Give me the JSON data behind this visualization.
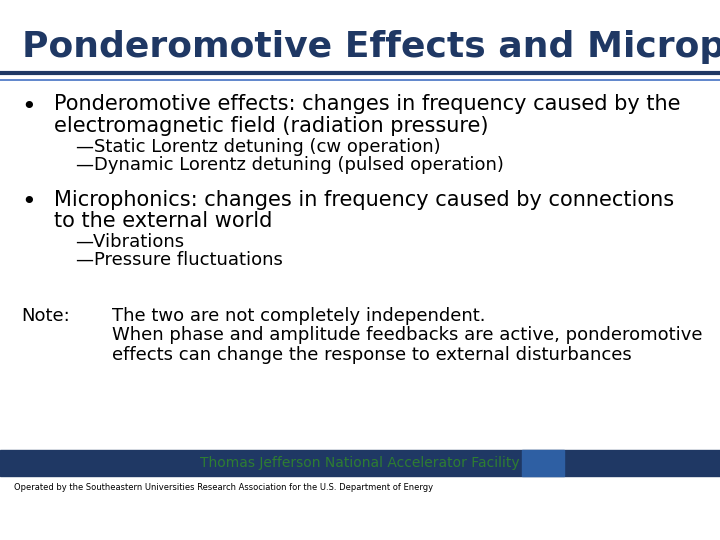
{
  "title": "Ponderomotive Effects and Microphonics",
  "title_color": "#1F3864",
  "title_fontsize": 26,
  "header_line_color": "#1F3864",
  "header_line2_color": "#4472C4",
  "background_color": "#FFFFFF",
  "bullet1_main_line1": "Ponderomotive effects: changes in frequency caused by the",
  "bullet1_main_line2": "electromagnetic field (radiation pressure)",
  "bullet1_sub1": "—Static Lorentz detuning (cw operation)",
  "bullet1_sub2": "—Dynamic Lorentz detuning (pulsed operation)",
  "bullet2_main_line1": "Microphonics: changes in frequency caused by connections",
  "bullet2_main_line2": "to the external world",
  "bullet2_sub1": "—Vibrations",
  "bullet2_sub2": "—Pressure fluctuations",
  "note_label": "Note:",
  "note_line1": "The two are not completely independent.",
  "note_line2": "When phase and amplitude feedbacks are active, ponderomotive",
  "note_line3": "effects can change the response to external disturbances",
  "footer_text": "Thomas Jefferson National Accelerator Facility",
  "footer_text_color": "#2E7D32",
  "footer_operated": "Operated by the Southeastern Universities Research Association for the U.S. Department of Energy",
  "body_fontsize": 15,
  "sub_fontsize": 13,
  "note_fontsize": 13,
  "footer_fontsize": 9,
  "footer_bar_color": "#1F3864",
  "page_box_color": "#2E5FA3"
}
